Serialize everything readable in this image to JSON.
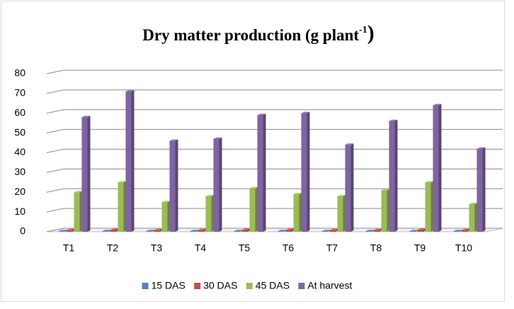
{
  "chart_data": {
    "type": "bar",
    "title": "Dry matter production  (g  plant",
    "title_superscript": "-1",
    "title_end": ")",
    "categories": [
      "T1",
      "T2",
      "T3",
      "T4",
      "T5",
      "T6",
      "T7",
      "T8",
      "T9",
      "T10"
    ],
    "series": [
      {
        "name": "15 DAS",
        "color": "#4f81bd",
        "values": [
          0.3,
          0.3,
          0.3,
          0.3,
          0.3,
          0.3,
          0.3,
          0.3,
          0.3,
          0.3
        ]
      },
      {
        "name": "30 DAS",
        "color": "#c0504d",
        "values": [
          0.8,
          0.9,
          0.8,
          0.8,
          0.9,
          0.9,
          0.8,
          0.8,
          0.9,
          0.8
        ]
      },
      {
        "name": "45 DAS",
        "color": "#9bbb59",
        "values": [
          20,
          25,
          15,
          18,
          22,
          19,
          18,
          21,
          25,
          14
        ]
      },
      {
        "name": "At harvest",
        "color": "#8064a2",
        "values": [
          58,
          71,
          46,
          47,
          59,
          60,
          44,
          56,
          64,
          42
        ]
      }
    ],
    "ylim": [
      0,
      80
    ],
    "yticks": [
      0,
      10,
      20,
      30,
      40,
      50,
      60,
      70,
      80
    ],
    "grid": true
  }
}
